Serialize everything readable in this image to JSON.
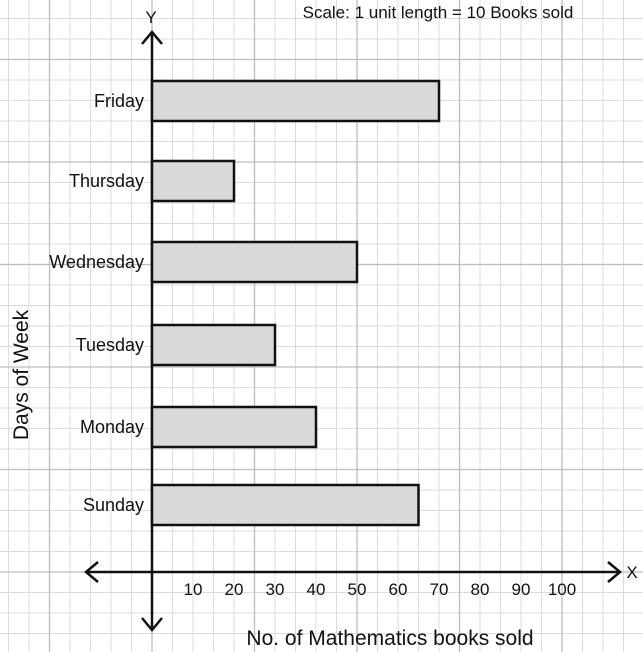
{
  "scale_note": "Scale: 1 unit length = 10 Books sold",
  "colors": {
    "bar_fill": "#d9d9d9",
    "bar_stroke": "#111111",
    "grid_minor": "#dcdcdc",
    "grid_major": "#bdbdbd",
    "axis": "#111111"
  },
  "chart_data": {
    "type": "bar",
    "orientation": "horizontal",
    "categories": [
      "Sunday",
      "Monday",
      "Tuesday",
      "Wednesday",
      "Thursday",
      "Friday"
    ],
    "values": [
      65,
      40,
      30,
      50,
      20,
      70
    ],
    "xlabel": "No. of Mathematics books sold",
    "ylabel": "Days of Week",
    "x_axis_letter": "X",
    "y_axis_letter": "Y",
    "xticks": [
      10,
      20,
      30,
      40,
      50,
      60,
      70,
      80,
      90,
      100
    ],
    "xlim": [
      0,
      100
    ],
    "grid": true
  }
}
